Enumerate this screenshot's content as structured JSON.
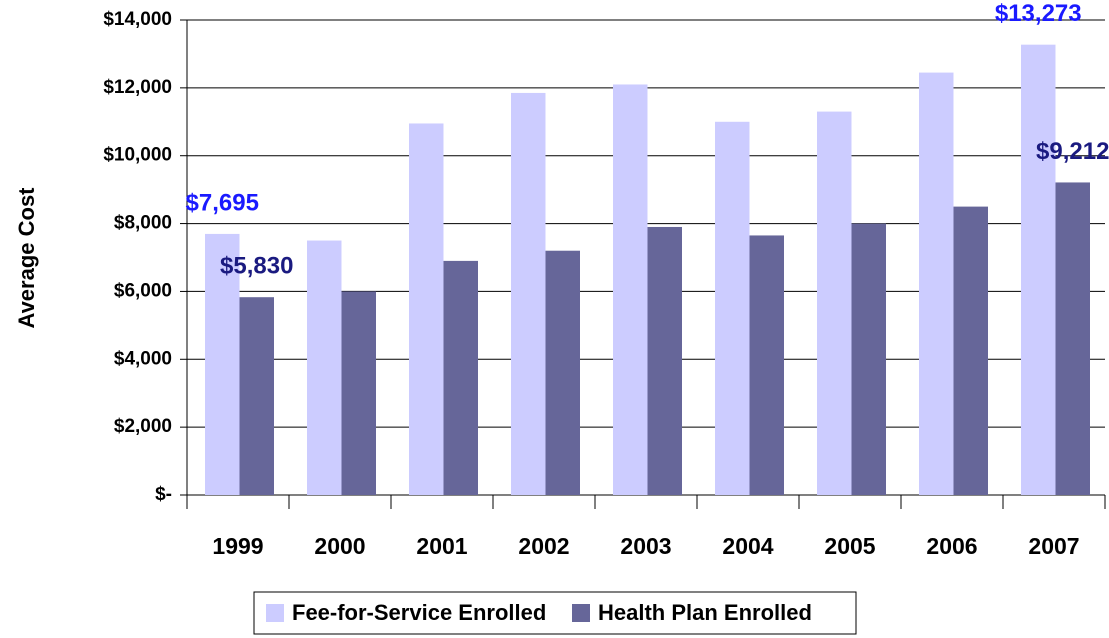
{
  "chart_data": {
    "type": "bar",
    "y_label": "Average Cost",
    "categories": [
      "1999",
      "2000",
      "2001",
      "2002",
      "2003",
      "2004",
      "2005",
      "2006",
      "2007"
    ],
    "series": [
      {
        "name": "Fee-for-Service Enrolled",
        "color": "#ccccff",
        "label_color": "#1a1aff",
        "values": [
          7695,
          7500,
          10950,
          11850,
          12100,
          11000,
          11300,
          12450,
          13273
        ],
        "value_labels": [
          "$7,695",
          null,
          null,
          null,
          null,
          null,
          null,
          null,
          "$13,273"
        ]
      },
      {
        "name": "Health Plan Enrolled",
        "color": "#666699",
        "label_color": "#1a1a80",
        "values": [
          5830,
          6000,
          6900,
          7200,
          7900,
          7650,
          8000,
          8500,
          9212
        ],
        "value_labels": [
          "$5,830",
          null,
          null,
          null,
          null,
          null,
          null,
          null,
          "$9,212"
        ]
      }
    ],
    "ylim": [
      0,
      14000
    ],
    "yticks": [
      {
        "value": 0,
        "label": "$-"
      },
      {
        "value": 2000,
        "label": "$2,000"
      },
      {
        "value": 4000,
        "label": "$4,000"
      },
      {
        "value": 6000,
        "label": "$6,000"
      },
      {
        "value": 8000,
        "label": "$8,000"
      },
      {
        "value": 10000,
        "label": "$10,000"
      },
      {
        "value": 12000,
        "label": "$12,000"
      },
      {
        "value": 14000,
        "label": "$14,000"
      }
    ],
    "grid": true,
    "legend": "bottom"
  }
}
